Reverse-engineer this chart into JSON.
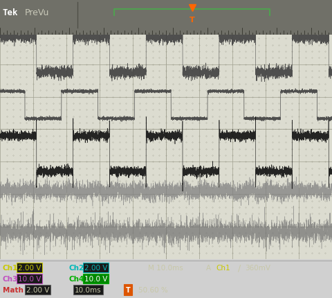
{
  "bg_color": "#d0d0d0",
  "screen_bg": "#dcdcd0",
  "grid_color": "#a0a090",
  "ch1_color": "#c8c800",
  "ch2_color": "#00b8b8",
  "ch3_color": "#c050c0",
  "ch4_color": "#00b000",
  "math_color": "#c83030",
  "ch1_volts": "2.00 V",
  "ch2_volts": "2.00 V",
  "ch3_volts": "10.0 V",
  "ch4_volts": "10.0 V",
  "timebase": "M 10.0ms",
  "trigger_level": "360mV",
  "math_volts": "2.00 V",
  "math_time": "10.0ms",
  "duty_cycle": "50.60 %",
  "waveform_color": "#404040",
  "math_wave_color": "#101010",
  "ch3_wave_color": "#808080",
  "ch4_wave_color": "#707070"
}
